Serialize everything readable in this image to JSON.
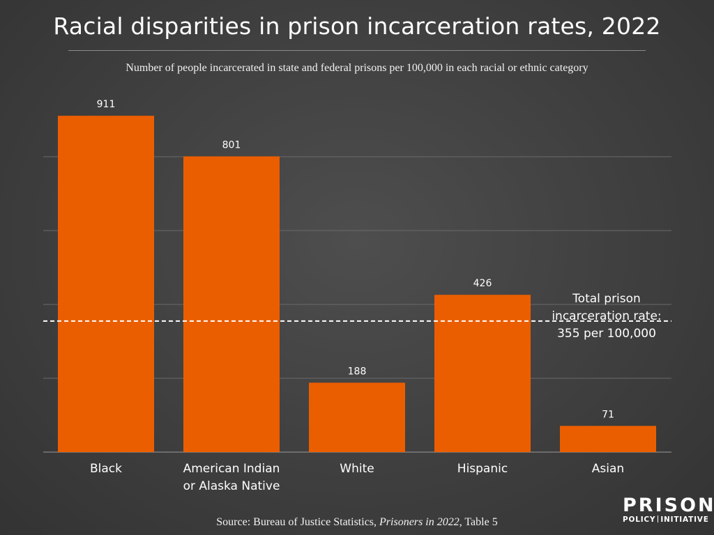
{
  "chart_data": {
    "type": "bar",
    "title": "Racial disparities in prison incarceration rates, 2022",
    "subtitle": "Number of people incarcerated in state and federal prisons per 100,000 in each racial or ethnic category",
    "categories": [
      [
        "Black"
      ],
      [
        "American Indian",
        "or Alaska Native"
      ],
      [
        "White"
      ],
      [
        "Hispanic"
      ],
      [
        "Asian"
      ]
    ],
    "values": [
      911,
      801,
      188,
      426,
      71
    ],
    "ylim": [
      0,
      1000
    ],
    "grid": true,
    "reference_line": {
      "value": 355,
      "label_lines": [
        "Total prison",
        "incarceration rate:",
        "355 per 100,000"
      ]
    },
    "bar_color": "#eb5e00",
    "background_color": "#454545"
  },
  "source": {
    "prefix": "Source: Bureau of Justice Statistics, ",
    "italic": "Prisoners in 2022",
    "suffix": ", Table 5"
  },
  "logo": {
    "top": "PRISON",
    "bottom_left": "POLICY",
    "bottom_right": "INITIATIVE"
  }
}
